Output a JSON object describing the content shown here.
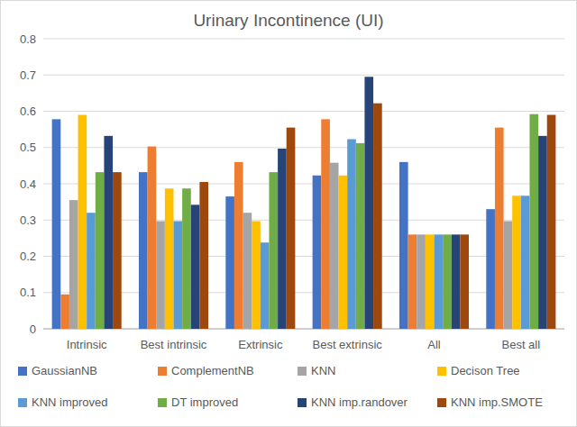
{
  "chart_data": {
    "type": "bar",
    "title": "Urinary Incontinence (UI)",
    "categories": [
      "Intrinsic",
      "Best intrinsic",
      "Extrinsic",
      "Best extrinsic",
      "All",
      "Best all"
    ],
    "series": [
      {
        "name": "GaussianNB",
        "color": "#4472c4",
        "values": [
          0.578,
          0.432,
          0.365,
          0.423,
          0.46,
          0.33
        ]
      },
      {
        "name": "ComplementNB",
        "color": "#ed7d31",
        "values": [
          0.095,
          0.503,
          0.46,
          0.578,
          0.26,
          0.555
        ]
      },
      {
        "name": "KNN",
        "color": "#a5a5a5",
        "values": [
          0.355,
          0.297,
          0.32,
          0.458,
          0.26,
          0.297
        ]
      },
      {
        "name": "Decison Tree",
        "color": "#ffc000",
        "values": [
          0.59,
          0.387,
          0.297,
          0.423,
          0.26,
          0.367
        ]
      },
      {
        "name": "KNN improved",
        "color": "#5b9bd5",
        "values": [
          0.32,
          0.297,
          0.238,
          0.523,
          0.26,
          0.367
        ]
      },
      {
        "name": "DT improved",
        "color": "#70ad47",
        "values": [
          0.432,
          0.387,
          0.432,
          0.512,
          0.26,
          0.592
        ]
      },
      {
        "name": "KNN imp.randover",
        "color": "#264478",
        "values": [
          0.532,
          0.342,
          0.497,
          0.695,
          0.26,
          0.532
        ]
      },
      {
        "name": "KNN imp.SMOTE",
        "color": "#9e480e",
        "values": [
          0.432,
          0.405,
          0.555,
          0.622,
          0.26,
          0.59
        ]
      }
    ],
    "ylim": [
      0,
      0.8
    ],
    "yticks": [
      0,
      0.1,
      0.2,
      0.3,
      0.4,
      0.5,
      0.6,
      0.7,
      0.8
    ],
    "grid": true,
    "legend": "bottom"
  }
}
